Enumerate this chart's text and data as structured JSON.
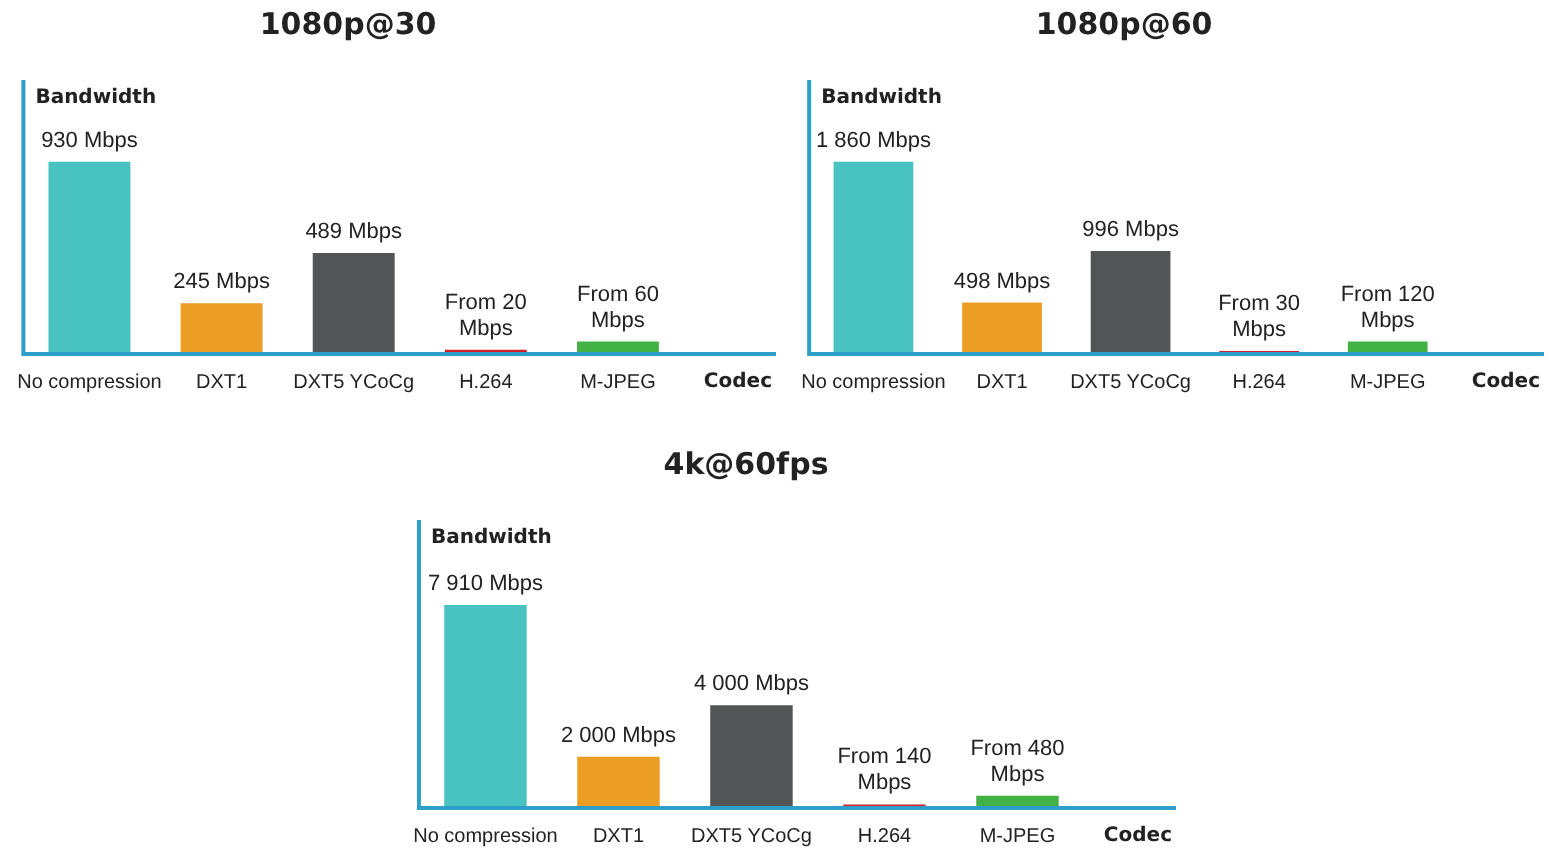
{
  "chart_data": [
    {
      "type": "bar",
      "title": "1080p@30",
      "xlabel": "Codec",
      "ylabel": "Bandwidth",
      "categories": [
        "No compression",
        "DXT1",
        "DXT5 YCoCg",
        "H.264",
        "M-JPEG"
      ],
      "values": [
        930,
        245,
        489,
        20,
        60
      ],
      "colors": [
        "#48c3c2",
        "#eb9d24",
        "#535456",
        "#d42128",
        "#43b244"
      ],
      "value_labels": [
        "930 Mbps",
        "245 Mbps",
        "489 Mbps",
        "From 20 Mbps",
        "From 60 Mbps"
      ],
      "legend": false,
      "grid": false
    },
    {
      "type": "bar",
      "title": "1080p@60",
      "xlabel": "Codec",
      "ylabel": "Bandwidth",
      "categories": [
        "No compression",
        "DXT1",
        "DXT5 YCoCg",
        "H.264",
        "M-JPEG"
      ],
      "values": [
        1860,
        498,
        996,
        30,
        120
      ],
      "colors": [
        "#48c3c2",
        "#eb9d24",
        "#535456",
        "#d42128",
        "#43b244"
      ],
      "value_labels": [
        "1 860 Mbps",
        "498 Mbps",
        "996 Mbps",
        "From 30 Mbps",
        "From 120 Mbps"
      ],
      "legend": false,
      "grid": false
    },
    {
      "type": "bar",
      "title": "4k@60fps",
      "xlabel": "Codec",
      "ylabel": "Bandwidth",
      "categories": [
        "No compression",
        "DXT1",
        "DXT5 YCoCg",
        "H.264",
        "M-JPEG"
      ],
      "values": [
        7910,
        2000,
        4000,
        140,
        480
      ],
      "colors": [
        "#48c3c2",
        "#eb9d24",
        "#535456",
        "#d42128",
        "#43b244"
      ],
      "value_labels": [
        "7 910 Mbps",
        "2 000 Mbps",
        "4 000 Mbps",
        "From 140 Mbps",
        "From 480 Mbps"
      ],
      "legend": false,
      "grid": false
    }
  ]
}
